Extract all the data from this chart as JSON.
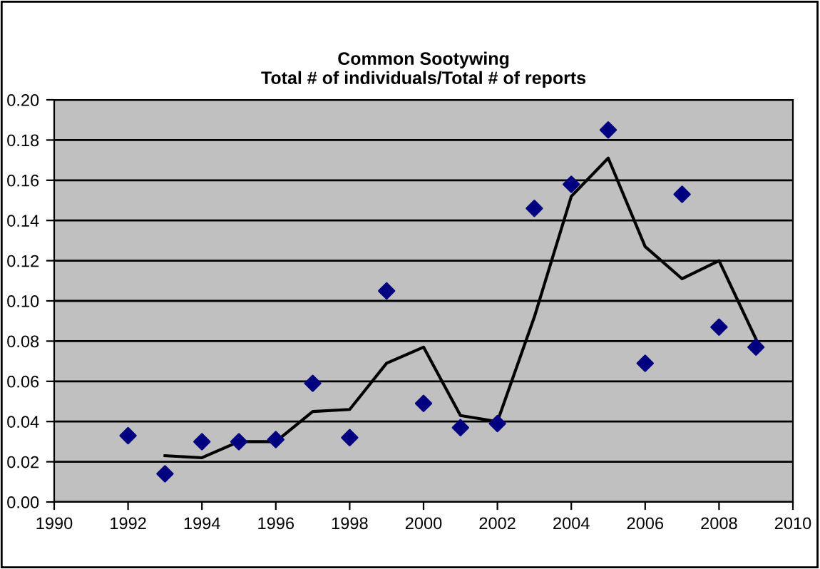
{
  "chart_data": {
    "type": "scatter",
    "title": "Common Sootywing\nTotal # of individuals/Total # of reports",
    "series": [
      {
        "color": "#000080",
        "marker": "diamond",
        "x": [
          1992,
          1993,
          1994,
          1995,
          1996,
          1997,
          1998,
          1999,
          2000,
          2001,
          2002,
          2003,
          2004,
          2005,
          2006,
          2007,
          2008,
          2009
        ],
        "values": [
          0.033,
          0.014,
          0.03,
          0.03,
          0.031,
          0.059,
          0.032,
          0.105,
          0.049,
          0.037,
          0.039,
          0.146,
          0.158,
          0.185,
          0.069,
          0.153,
          0.087,
          0.077
        ]
      },
      {
        "type": "line",
        "color": "#000000",
        "marker": "none",
        "x": [
          1993,
          1994,
          1995,
          1996,
          1997,
          1998,
          1999,
          2000,
          2001,
          2002,
          2003,
          2004,
          2005,
          2006,
          2007,
          2008,
          2009
        ],
        "values": [
          0.023,
          0.022,
          0.03,
          0.03,
          0.045,
          0.046,
          0.069,
          0.077,
          0.043,
          0.04,
          0.092,
          0.152,
          0.171,
          0.127,
          0.111,
          0.12,
          0.081
        ]
      }
    ],
    "xlim": [
      1990,
      2010
    ],
    "xticks": [
      1990,
      1992,
      1994,
      1996,
      1998,
      2000,
      2002,
      2004,
      2006,
      2008,
      2010
    ],
    "ylim": [
      0,
      0.2
    ],
    "yticks": [
      {
        "value": 0,
        "label": "0.00"
      },
      {
        "value": 0.02,
        "label": "0.02"
      },
      {
        "value": 0.04,
        "label": "0.04"
      },
      {
        "value": 0.06,
        "label": "0.06"
      },
      {
        "value": 0.08,
        "label": "0.08"
      },
      {
        "value": 0.1,
        "label": "0.10"
      },
      {
        "value": 0.12,
        "label": "0.12"
      },
      {
        "value": 0.14,
        "label": "0.14"
      },
      {
        "value": 0.16,
        "label": "0.16"
      },
      {
        "value": 0.18,
        "label": "0.18"
      },
      {
        "value": 0.2,
        "label": "0.20"
      }
    ],
    "grid": "y",
    "legend": false
  }
}
